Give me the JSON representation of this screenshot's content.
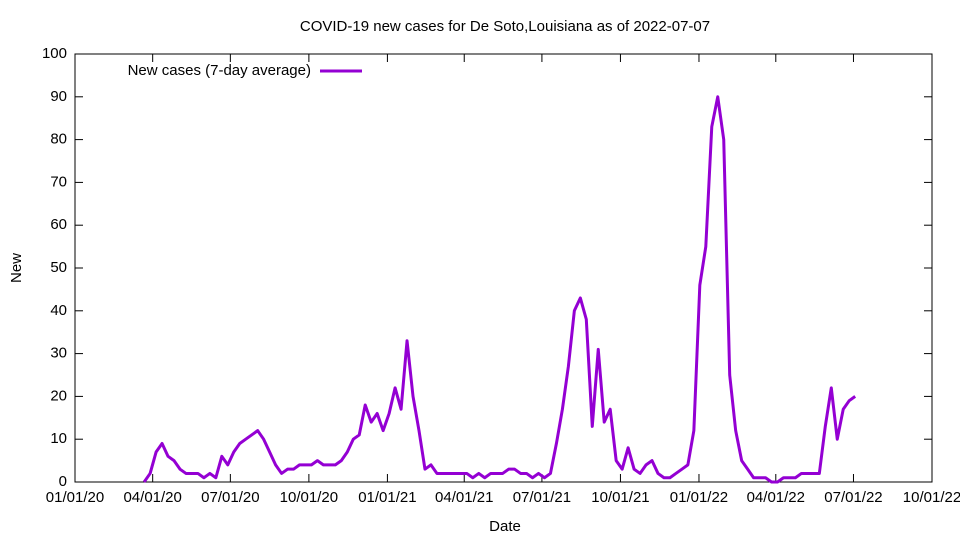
{
  "chart_data": {
    "type": "line",
    "title": "COVID-19 new cases for De Soto,Louisiana as of 2022-07-07",
    "xlabel": "Date",
    "ylabel": "New",
    "x": [
      "2020-03-22",
      "2020-03-29",
      "2020-04-05",
      "2020-04-12",
      "2020-04-19",
      "2020-04-26",
      "2020-05-03",
      "2020-05-10",
      "2020-05-17",
      "2020-05-24",
      "2020-05-31",
      "2020-06-07",
      "2020-06-14",
      "2020-06-21",
      "2020-06-28",
      "2020-07-05",
      "2020-07-12",
      "2020-07-19",
      "2020-07-26",
      "2020-08-02",
      "2020-08-09",
      "2020-08-16",
      "2020-08-23",
      "2020-08-30",
      "2020-09-06",
      "2020-09-13",
      "2020-09-20",
      "2020-09-27",
      "2020-10-04",
      "2020-10-11",
      "2020-10-18",
      "2020-10-25",
      "2020-11-01",
      "2020-11-08",
      "2020-11-15",
      "2020-11-22",
      "2020-11-29",
      "2020-12-06",
      "2020-12-13",
      "2020-12-20",
      "2020-12-27",
      "2021-01-03",
      "2021-01-10",
      "2021-01-17",
      "2021-01-24",
      "2021-01-31",
      "2021-02-07",
      "2021-02-14",
      "2021-02-21",
      "2021-02-28",
      "2021-03-07",
      "2021-03-14",
      "2021-03-21",
      "2021-03-28",
      "2021-04-04",
      "2021-04-11",
      "2021-04-18",
      "2021-04-25",
      "2021-05-02",
      "2021-05-09",
      "2021-05-16",
      "2021-05-23",
      "2021-05-30",
      "2021-06-06",
      "2021-06-13",
      "2021-06-20",
      "2021-06-27",
      "2021-07-04",
      "2021-07-11",
      "2021-07-18",
      "2021-07-25",
      "2021-08-01",
      "2021-08-08",
      "2021-08-15",
      "2021-08-22",
      "2021-08-29",
      "2021-09-05",
      "2021-09-12",
      "2021-09-19",
      "2021-09-26",
      "2021-10-03",
      "2021-10-10",
      "2021-10-17",
      "2021-10-24",
      "2021-10-31",
      "2021-11-07",
      "2021-11-14",
      "2021-11-21",
      "2021-11-28",
      "2021-12-05",
      "2021-12-12",
      "2021-12-19",
      "2021-12-26",
      "2022-01-02",
      "2022-01-09",
      "2022-01-16",
      "2022-01-23",
      "2022-01-30",
      "2022-02-06",
      "2022-02-13",
      "2022-02-20",
      "2022-02-27",
      "2022-03-06",
      "2022-03-13",
      "2022-03-20",
      "2022-03-27",
      "2022-04-03",
      "2022-04-10",
      "2022-04-17",
      "2022-04-24",
      "2022-05-01",
      "2022-05-08",
      "2022-05-15",
      "2022-05-22",
      "2022-05-29",
      "2022-06-05",
      "2022-06-12",
      "2022-06-19",
      "2022-06-26",
      "2022-07-03"
    ],
    "series": [
      {
        "name": "New cases (7-day average)",
        "color": "#9400d3",
        "values": [
          0,
          2,
          7,
          9,
          6,
          5,
          3,
          2,
          2,
          2,
          1,
          2,
          1,
          6,
          4,
          7,
          9,
          10,
          11,
          12,
          10,
          7,
          4,
          2,
          3,
          3,
          4,
          4,
          4,
          5,
          4,
          4,
          4,
          5,
          7,
          10,
          11,
          18,
          14,
          16,
          12,
          16,
          22,
          17,
          33,
          20,
          12,
          3,
          4,
          2,
          2,
          2,
          2,
          2,
          2,
          1,
          2,
          1,
          2,
          2,
          2,
          3,
          3,
          2,
          2,
          1,
          2,
          1,
          2,
          9,
          17,
          27,
          40,
          43,
          38,
          13,
          31,
          14,
          17,
          5,
          3,
          8,
          3,
          2,
          4,
          5,
          2,
          1,
          1,
          2,
          3,
          4,
          12,
          46,
          55,
          83,
          90,
          80,
          25,
          12,
          5,
          3,
          1,
          1,
          1,
          0,
          0,
          1,
          1,
          1,
          2,
          2,
          2,
          2,
          13,
          22,
          10,
          17,
          19,
          20
        ]
      }
    ],
    "xlim": [
      "2020-01-01",
      "2022-10-01"
    ],
    "xticks": [
      {
        "value": "2020-01-01",
        "label": "01/01/20"
      },
      {
        "value": "2020-04-01",
        "label": "04/01/20"
      },
      {
        "value": "2020-07-01",
        "label": "07/01/20"
      },
      {
        "value": "2020-10-01",
        "label": "10/01/20"
      },
      {
        "value": "2021-01-01",
        "label": "01/01/21"
      },
      {
        "value": "2021-04-01",
        "label": "04/01/21"
      },
      {
        "value": "2021-07-01",
        "label": "07/01/21"
      },
      {
        "value": "2021-10-01",
        "label": "10/01/21"
      },
      {
        "value": "2022-01-01",
        "label": "01/01/22"
      },
      {
        "value": "2022-04-01",
        "label": "04/01/22"
      },
      {
        "value": "2022-07-01",
        "label": "07/01/22"
      },
      {
        "value": "2022-10-01",
        "label": "10/01/22"
      }
    ],
    "ylim": [
      0,
      100
    ],
    "yticks": [
      0,
      10,
      20,
      30,
      40,
      50,
      60,
      70,
      80,
      90,
      100
    ],
    "grid": false,
    "legend": "upper left"
  }
}
